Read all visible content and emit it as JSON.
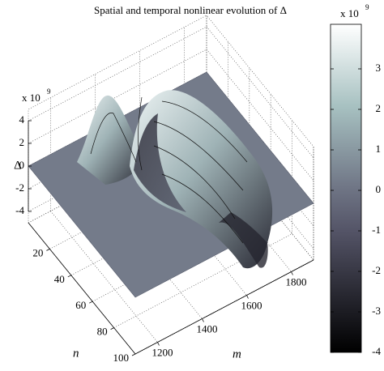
{
  "chart_data": {
    "type": "surface",
    "title": "Spatial and temporal nonlinear evolution of Δ",
    "xlabel": "m",
    "ylabel": "n",
    "zlabel": "Δ",
    "scale_label": "x 10",
    "scale_exponent": "9",
    "xlim": [
      1100,
      1900
    ],
    "xticks": [
      1200,
      1400,
      1600,
      1800
    ],
    "ylim": [
      0,
      100
    ],
    "yticks": [
      20,
      40,
      60,
      80,
      100
    ],
    "zlim": [
      -5,
      5
    ],
    "zticks": [
      4,
      2,
      0,
      -2,
      -4
    ],
    "clim": [
      -4,
      4.1
    ],
    "cticks": [
      3,
      2,
      1,
      0,
      -1,
      -2,
      -3,
      -4
    ],
    "colormap": "bone",
    "grid": true
  }
}
